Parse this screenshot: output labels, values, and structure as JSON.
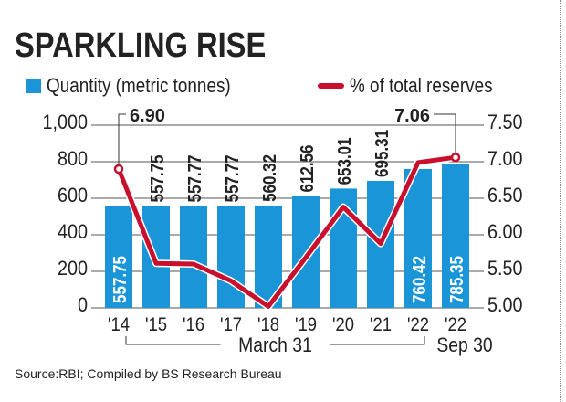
{
  "chart_data": {
    "type": "bar+line",
    "title": "SPARKLING RISE",
    "categories": [
      "'14",
      "'15",
      "'16",
      "'17",
      "'18",
      "'19",
      "'20",
      "'21",
      "'22",
      "'22"
    ],
    "category_groups": [
      {
        "label": "March 31",
        "from": 0,
        "to": 8
      },
      {
        "label": "Sep 30",
        "from": 9,
        "to": 9
      }
    ],
    "series": [
      {
        "name": "Quantity (metric tonnes)",
        "type": "bar",
        "axis": "left",
        "color": "#1a96d8",
        "values": [
          557.75,
          557.75,
          557.77,
          557.77,
          560.32,
          612.56,
          653.01,
          695.31,
          760.42,
          785.35
        ],
        "labels": [
          "557.75",
          "557.75",
          "557.77",
          "557.77",
          "560.32",
          "612.56",
          "653.01",
          "695.31",
          "760.42",
          "785.35"
        ]
      },
      {
        "name": "% of total reserves",
        "type": "line",
        "axis": "right",
        "color": "#c8102e",
        "values": [
          6.9,
          5.61,
          5.6,
          5.37,
          5.02,
          5.69,
          6.38,
          5.88,
          6.99,
          7.06
        ]
      }
    ],
    "annotations": [
      {
        "index": 0,
        "text": "6.90"
      },
      {
        "index": 9,
        "text": "7.06"
      }
    ],
    "y_left": {
      "ylim": [
        0,
        1000
      ],
      "ticks": [
        0,
        200,
        400,
        600,
        800,
        1000
      ],
      "tick_labels": [
        "0",
        "200",
        "400",
        "600",
        "800",
        "1,000"
      ]
    },
    "y_right": {
      "ylim": [
        5.0,
        7.5
      ],
      "ticks": [
        5.0,
        5.5,
        6.0,
        6.5,
        7.0,
        7.5
      ],
      "tick_labels": [
        "5.00",
        "5.50",
        "6.00",
        "6.50",
        "7.00",
        "7.50"
      ]
    },
    "grid": true,
    "legend_position": "top",
    "source": "Source:RBI; Compiled by BS Research Bureau"
  }
}
